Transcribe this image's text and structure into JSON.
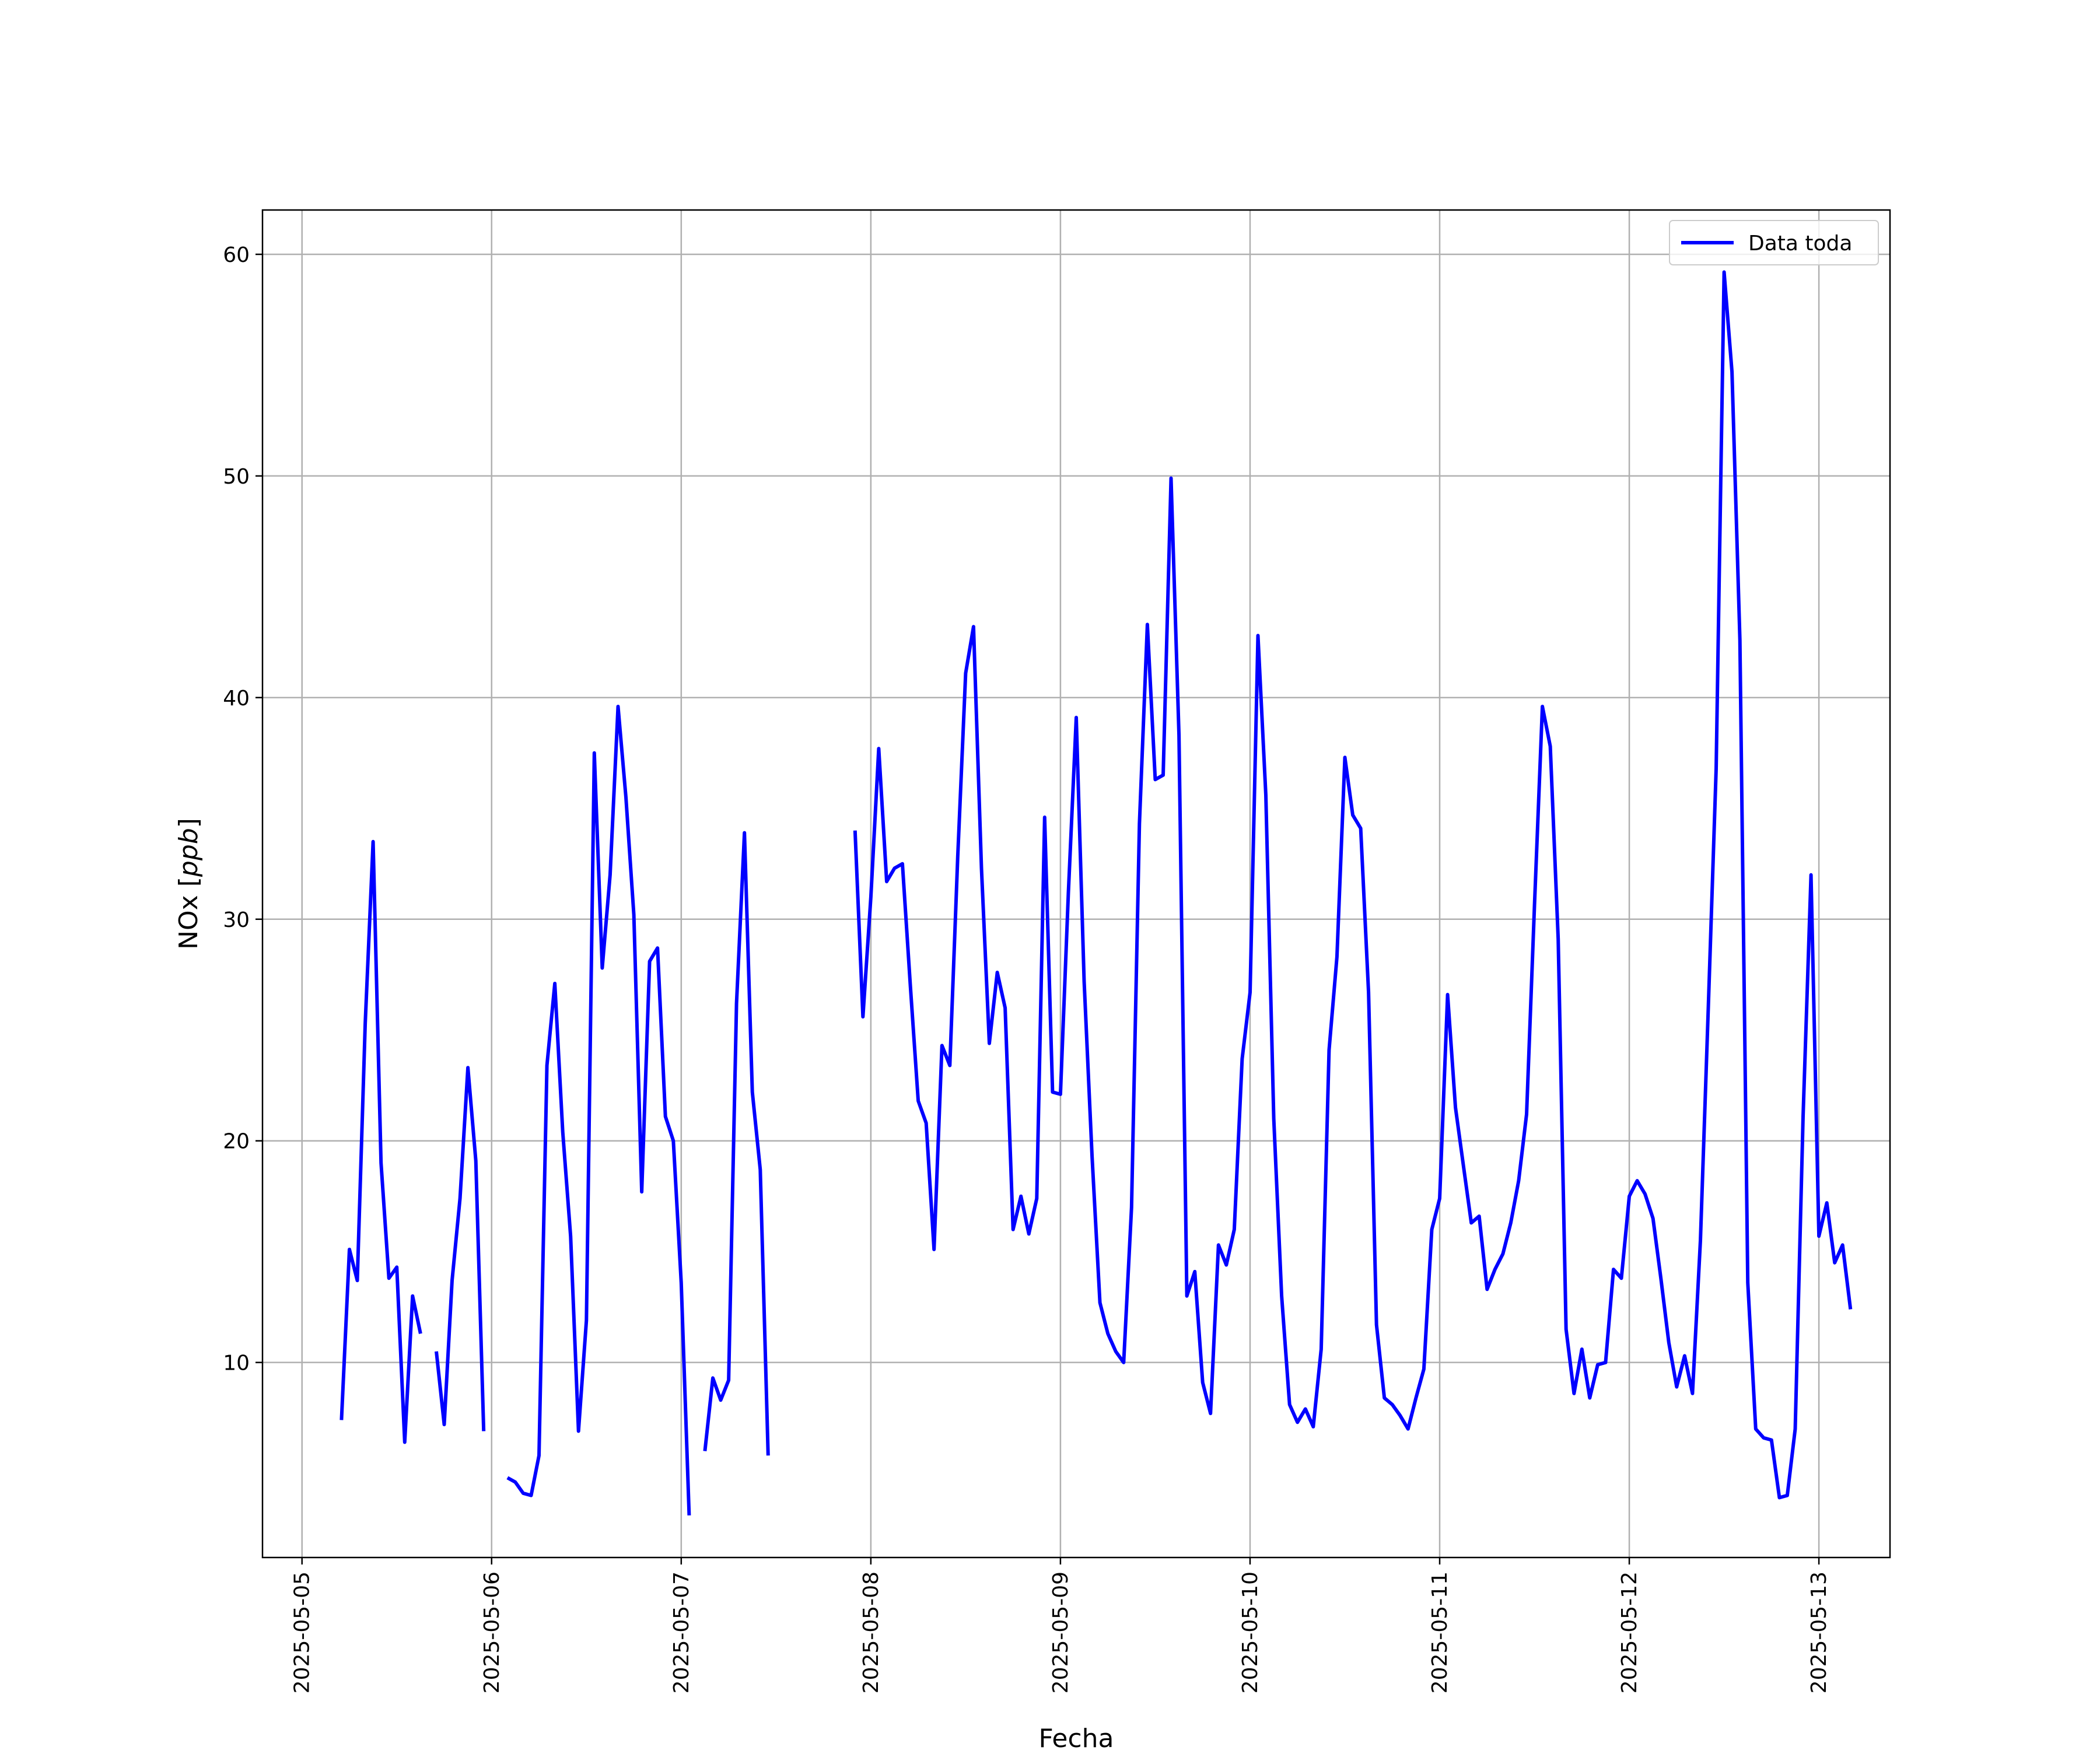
{
  "chart_data": {
    "type": "line",
    "title": "",
    "xlabel": "Fecha",
    "ylabel": "NOx [ppb]",
    "ylabel_parts": {
      "prefix": "NOx ",
      "open": "[",
      "unit": "ppb",
      "close": "]"
    },
    "xlim": [
      "2025-05-04T19:00",
      "2025-05-13T09:00"
    ],
    "ylim": [
      1.2,
      62.0
    ],
    "x_ticks": [
      "2025-05-05",
      "2025-05-06",
      "2025-05-07",
      "2025-05-08",
      "2025-05-09",
      "2025-05-10",
      "2025-05-11",
      "2025-05-12",
      "2025-05-13"
    ],
    "y_ticks": [
      10,
      20,
      30,
      40,
      50,
      60
    ],
    "grid": true,
    "legend": {
      "position": "top-right",
      "entries": [
        "Data toda"
      ]
    },
    "colors": {
      "series": "#0000ff",
      "grid": "#b0b0b0",
      "axes": "#000000"
    },
    "series": [
      {
        "name": "Data toda",
        "color": "#0000ff",
        "x_start": "2025-05-05T00:00",
        "x_step_hours": 1,
        "values": [
          null,
          null,
          null,
          null,
          null,
          7.4,
          15.1,
          13.7,
          25.3,
          33.5,
          19.0,
          13.8,
          14.3,
          6.4,
          13.0,
          11.3,
          null,
          10.5,
          7.2,
          13.7,
          17.4,
          23.3,
          19.1,
          6.9,
          null,
          null,
          4.8,
          4.6,
          4.1,
          4.0,
          5.8,
          23.4,
          27.1,
          20.4,
          15.7,
          6.9,
          11.9,
          37.5,
          27.8,
          32.0,
          39.6,
          35.5,
          30.2,
          17.7,
          28.1,
          28.7,
          21.1,
          20.0,
          13.6,
          3.1,
          null,
          6.0,
          9.3,
          8.3,
          9.2,
          26.2,
          33.9,
          22.2,
          18.7,
          5.8,
          null,
          null,
          null,
          null,
          null,
          null,
          null,
          null,
          null,
          null,
          34.0,
          25.6,
          31.0,
          37.7,
          31.7,
          32.3,
          32.5,
          27.0,
          21.8,
          20.8,
          15.1,
          24.3,
          23.4,
          32.8,
          41.1,
          43.2,
          32.3,
          24.4,
          27.6,
          26.0,
          16.0,
          17.5,
          15.8,
          17.4,
          34.6,
          22.2,
          22.1,
          31.2,
          39.1,
          27.2,
          19.3,
          12.7,
          11.3,
          10.5,
          10.0,
          17.0,
          34.3,
          43.3,
          36.3,
          36.5,
          49.9,
          38.3,
          13.0,
          14.1,
          9.1,
          7.7,
          15.3,
          14.4,
          16.0,
          23.7,
          26.7,
          42.8,
          35.6,
          21.0,
          13.0,
          8.1,
          7.3,
          7.9,
          7.1,
          10.6,
          24.1,
          28.3,
          37.3,
          34.7,
          34.1,
          26.7,
          11.7,
          8.4,
          8.1,
          7.6,
          7.0,
          8.4,
          9.7,
          16.0,
          17.4,
          26.6,
          21.5,
          18.9,
          16.3,
          16.6,
          13.3,
          14.2,
          14.9,
          16.3,
          18.2,
          21.2,
          30.6,
          39.6,
          37.8,
          29.1,
          11.5,
          8.6,
          10.6,
          8.4,
          9.9,
          10.0,
          14.2,
          13.8,
          17.5,
          18.2,
          17.6,
          16.5,
          13.8,
          10.9,
          8.9,
          10.3,
          8.6,
          15.5,
          26.0,
          36.8,
          59.2,
          54.7,
          42.6,
          13.6,
          7.0,
          6.6,
          6.5,
          3.9,
          4.0,
          7.0,
          21.1,
          32.0,
          15.7,
          17.2,
          14.5,
          15.3,
          12.4
        ]
      }
    ]
  }
}
